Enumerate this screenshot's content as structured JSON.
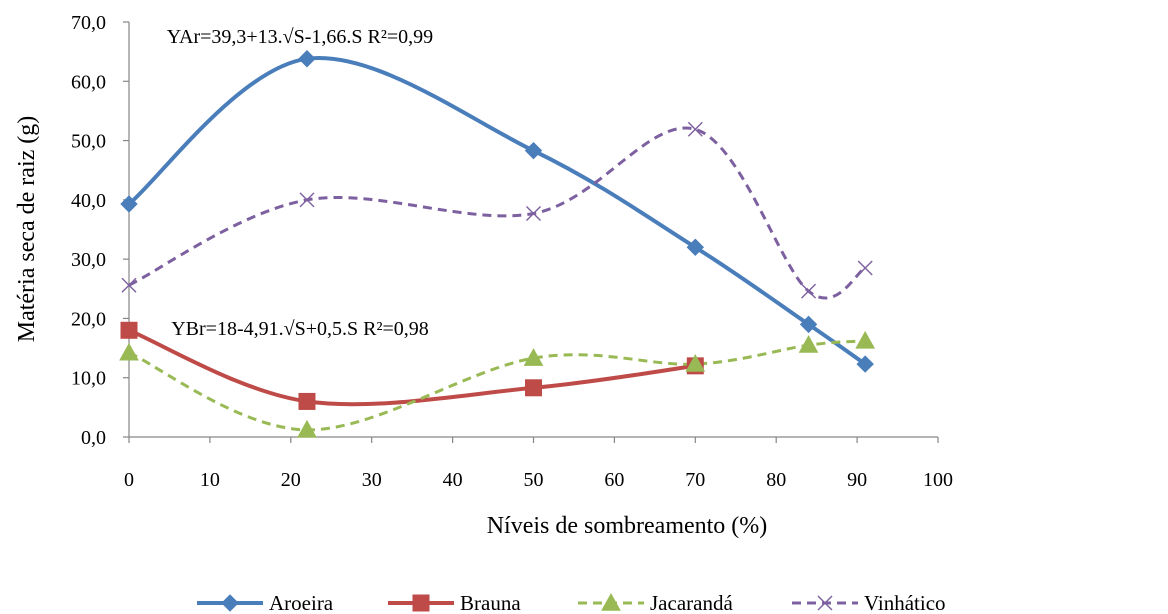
{
  "chart_data": {
    "type": "line",
    "xlabel": "Níveis de sombreamento (%)",
    "ylabel": "Matéria seca de raiz  (g)",
    "xlim": [
      0,
      100
    ],
    "ylim": [
      0,
      70
    ],
    "x_ticks": [
      "0",
      "10",
      "20",
      "30",
      "40",
      "50",
      "60",
      "70",
      "80",
      "90",
      "100"
    ],
    "y_ticks": [
      "0,0",
      "10,0",
      "20,0",
      "30,0",
      "40,0",
      "50,0",
      "60,0",
      "70,0"
    ],
    "grid": false,
    "legend_position": "bottom",
    "annotations": [
      {
        "text": "YAr=39,3+13.√S-1,66.S   R²=0,99",
        "x": 22,
        "y": 66.5
      },
      {
        "text": "YBr=18-4,91.√S+0,5.S  R²=0,98",
        "x": 22,
        "y": 17.2
      }
    ],
    "series": [
      {
        "name": "Aroeira",
        "color": "#4a7ebb",
        "style": "solid",
        "marker": "diamond",
        "x": [
          0,
          22,
          50,
          70,
          84,
          91
        ],
        "values": [
          39.3,
          63.8,
          48.3,
          32.0,
          19.0,
          12.3
        ]
      },
      {
        "name": "Brauna",
        "color": "#be4b48",
        "style": "solid",
        "marker": "square",
        "x": [
          0,
          22,
          50,
          70
        ],
        "values": [
          18.0,
          6.0,
          8.3,
          12.0
        ]
      },
      {
        "name": "Jacarandá",
        "color": "#98b954",
        "style": "dashed",
        "marker": "triangle",
        "x": [
          0,
          22,
          50,
          70,
          84,
          91
        ],
        "values": [
          14.2,
          1.2,
          13.3,
          12.3,
          15.5,
          16.2
        ]
      },
      {
        "name": "Vinhático",
        "color": "#7d60a0",
        "style": "dashed",
        "marker": "x",
        "x": [
          0,
          22,
          50,
          70,
          84,
          91
        ],
        "values": [
          25.6,
          40.0,
          37.7,
          51.9,
          24.6,
          28.5
        ]
      }
    ]
  }
}
